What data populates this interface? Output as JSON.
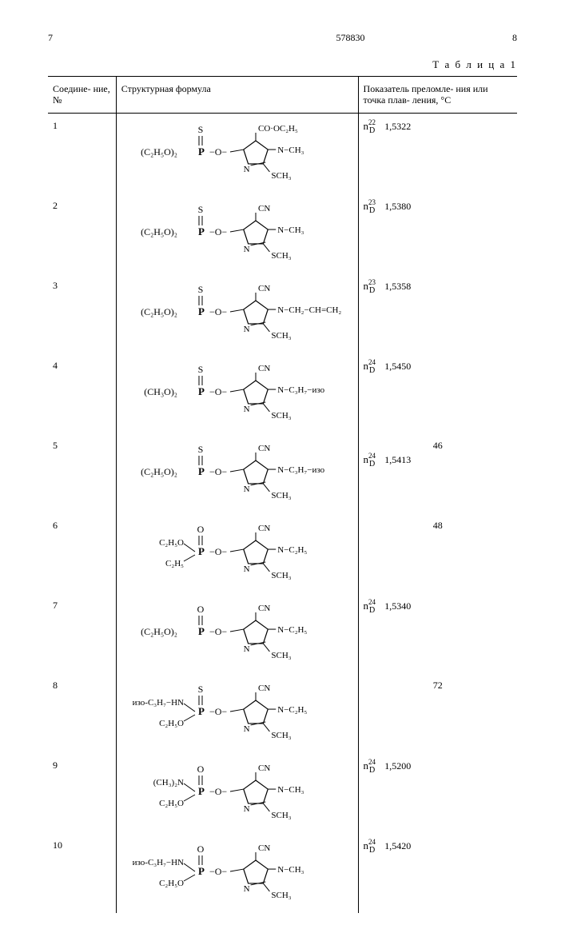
{
  "header": {
    "page_left": "7",
    "doc_number": "578830",
    "page_right": "8"
  },
  "table": {
    "caption": "Т а б л и ц а  1",
    "columns": {
      "compound": "Соедине-\nние, №",
      "formula": "Структурная формула",
      "index": "Показатель преломле-\nния или точка плав-\nления, °C"
    },
    "rows": [
      {
        "num": "1",
        "formula": {
          "left_group": "(C₂H₅O)₂",
          "p_top": "S",
          "r_top": "CO·OC₂H₅",
          "r_n": "N−CH₃",
          "r_bottom": "SCH₃"
        },
        "index_symbol": {
          "n": "n",
          "sup": "22",
          "sub": "D"
        },
        "index_value": "1,5322",
        "mp": ""
      },
      {
        "num": "2",
        "formula": {
          "left_group": "(C₂H₅O)₂",
          "p_top": "S",
          "r_top": "CN",
          "r_n": "N−CH₃",
          "r_bottom": "SCH₃"
        },
        "index_symbol": {
          "n": "n",
          "sup": "23",
          "sub": "D"
        },
        "index_value": "1,5380",
        "mp": ""
      },
      {
        "num": "3",
        "formula": {
          "left_group": "(C₂H₅O)₂",
          "p_top": "S",
          "r_top": "CN",
          "r_n": "N−CH₂−CH=CH₂",
          "r_bottom": "SCH₃"
        },
        "index_symbol": {
          "n": "n",
          "sup": "23",
          "sub": "D"
        },
        "index_value": "1,5358",
        "mp": ""
      },
      {
        "num": "4",
        "formula": {
          "left_group": "(CH₃O)₂",
          "p_top": "S",
          "r_top": "CN",
          "r_n": "N−C₃H₇−изо",
          "r_bottom": "SCH₃"
        },
        "index_symbol": {
          "n": "n",
          "sup": "24",
          "sub": "D"
        },
        "index_value": "1,5450",
        "mp": ""
      },
      {
        "num": "5",
        "formula": {
          "left_group": "(C₂H₅O)₂",
          "p_top": "S",
          "r_top": "CN",
          "r_n": "N−C₃H₇−изо",
          "r_bottom": "SCH₃"
        },
        "index_symbol": {
          "n": "n",
          "sup": "24",
          "sub": "D"
        },
        "index_value": "1,5413",
        "mp": "46"
      },
      {
        "num": "6",
        "formula": {
          "left_top": "C₂H₅O",
          "left_bottom": "C₂H₅",
          "p_top": "O",
          "r_top": "CN",
          "r_n": "N−C₂H₅",
          "r_bottom": "SCH₃"
        },
        "index_symbol": null,
        "index_value": "",
        "mp": "48"
      },
      {
        "num": "7",
        "formula": {
          "left_group": "(C₂H₅O)₂",
          "p_top": "O",
          "r_top": "CN",
          "r_n": "N−C₂H₅",
          "r_bottom": "SCH₃"
        },
        "index_symbol": {
          "n": "n",
          "sup": "24",
          "sub": "D"
        },
        "index_value": "1,5340",
        "mp": ""
      },
      {
        "num": "8",
        "formula": {
          "left_top": "изо-C₃H₇−HN",
          "left_bottom": "C₂H₅O",
          "p_top": "S",
          "r_top": "CN",
          "r_n": "N−C₂H₅",
          "r_bottom": "SCH₃"
        },
        "index_symbol": null,
        "index_value": "",
        "mp": "72"
      },
      {
        "num": "9",
        "formula": {
          "left_top": "(CH₃)₂N",
          "left_bottom": "C₂H₅O",
          "p_top": "O",
          "r_top": "CN",
          "r_n": "N−CH₃",
          "r_bottom": "SCH₃"
        },
        "index_symbol": {
          "n": "n",
          "sup": "24",
          "sub": "D"
        },
        "index_value": "1,5200",
        "mp": ""
      },
      {
        "num": "10",
        "formula": {
          "left_top": "изо-C₃H₇−HN",
          "left_bottom": "C₂H₅O",
          "p_top": "O",
          "r_top": "CN",
          "r_n": "N−CH₃",
          "r_bottom": "SCH₃"
        },
        "index_symbol": {
          "n": "n",
          "sup": "24",
          "sub": "D"
        },
        "index_value": "1,5420",
        "mp": ""
      }
    ]
  }
}
